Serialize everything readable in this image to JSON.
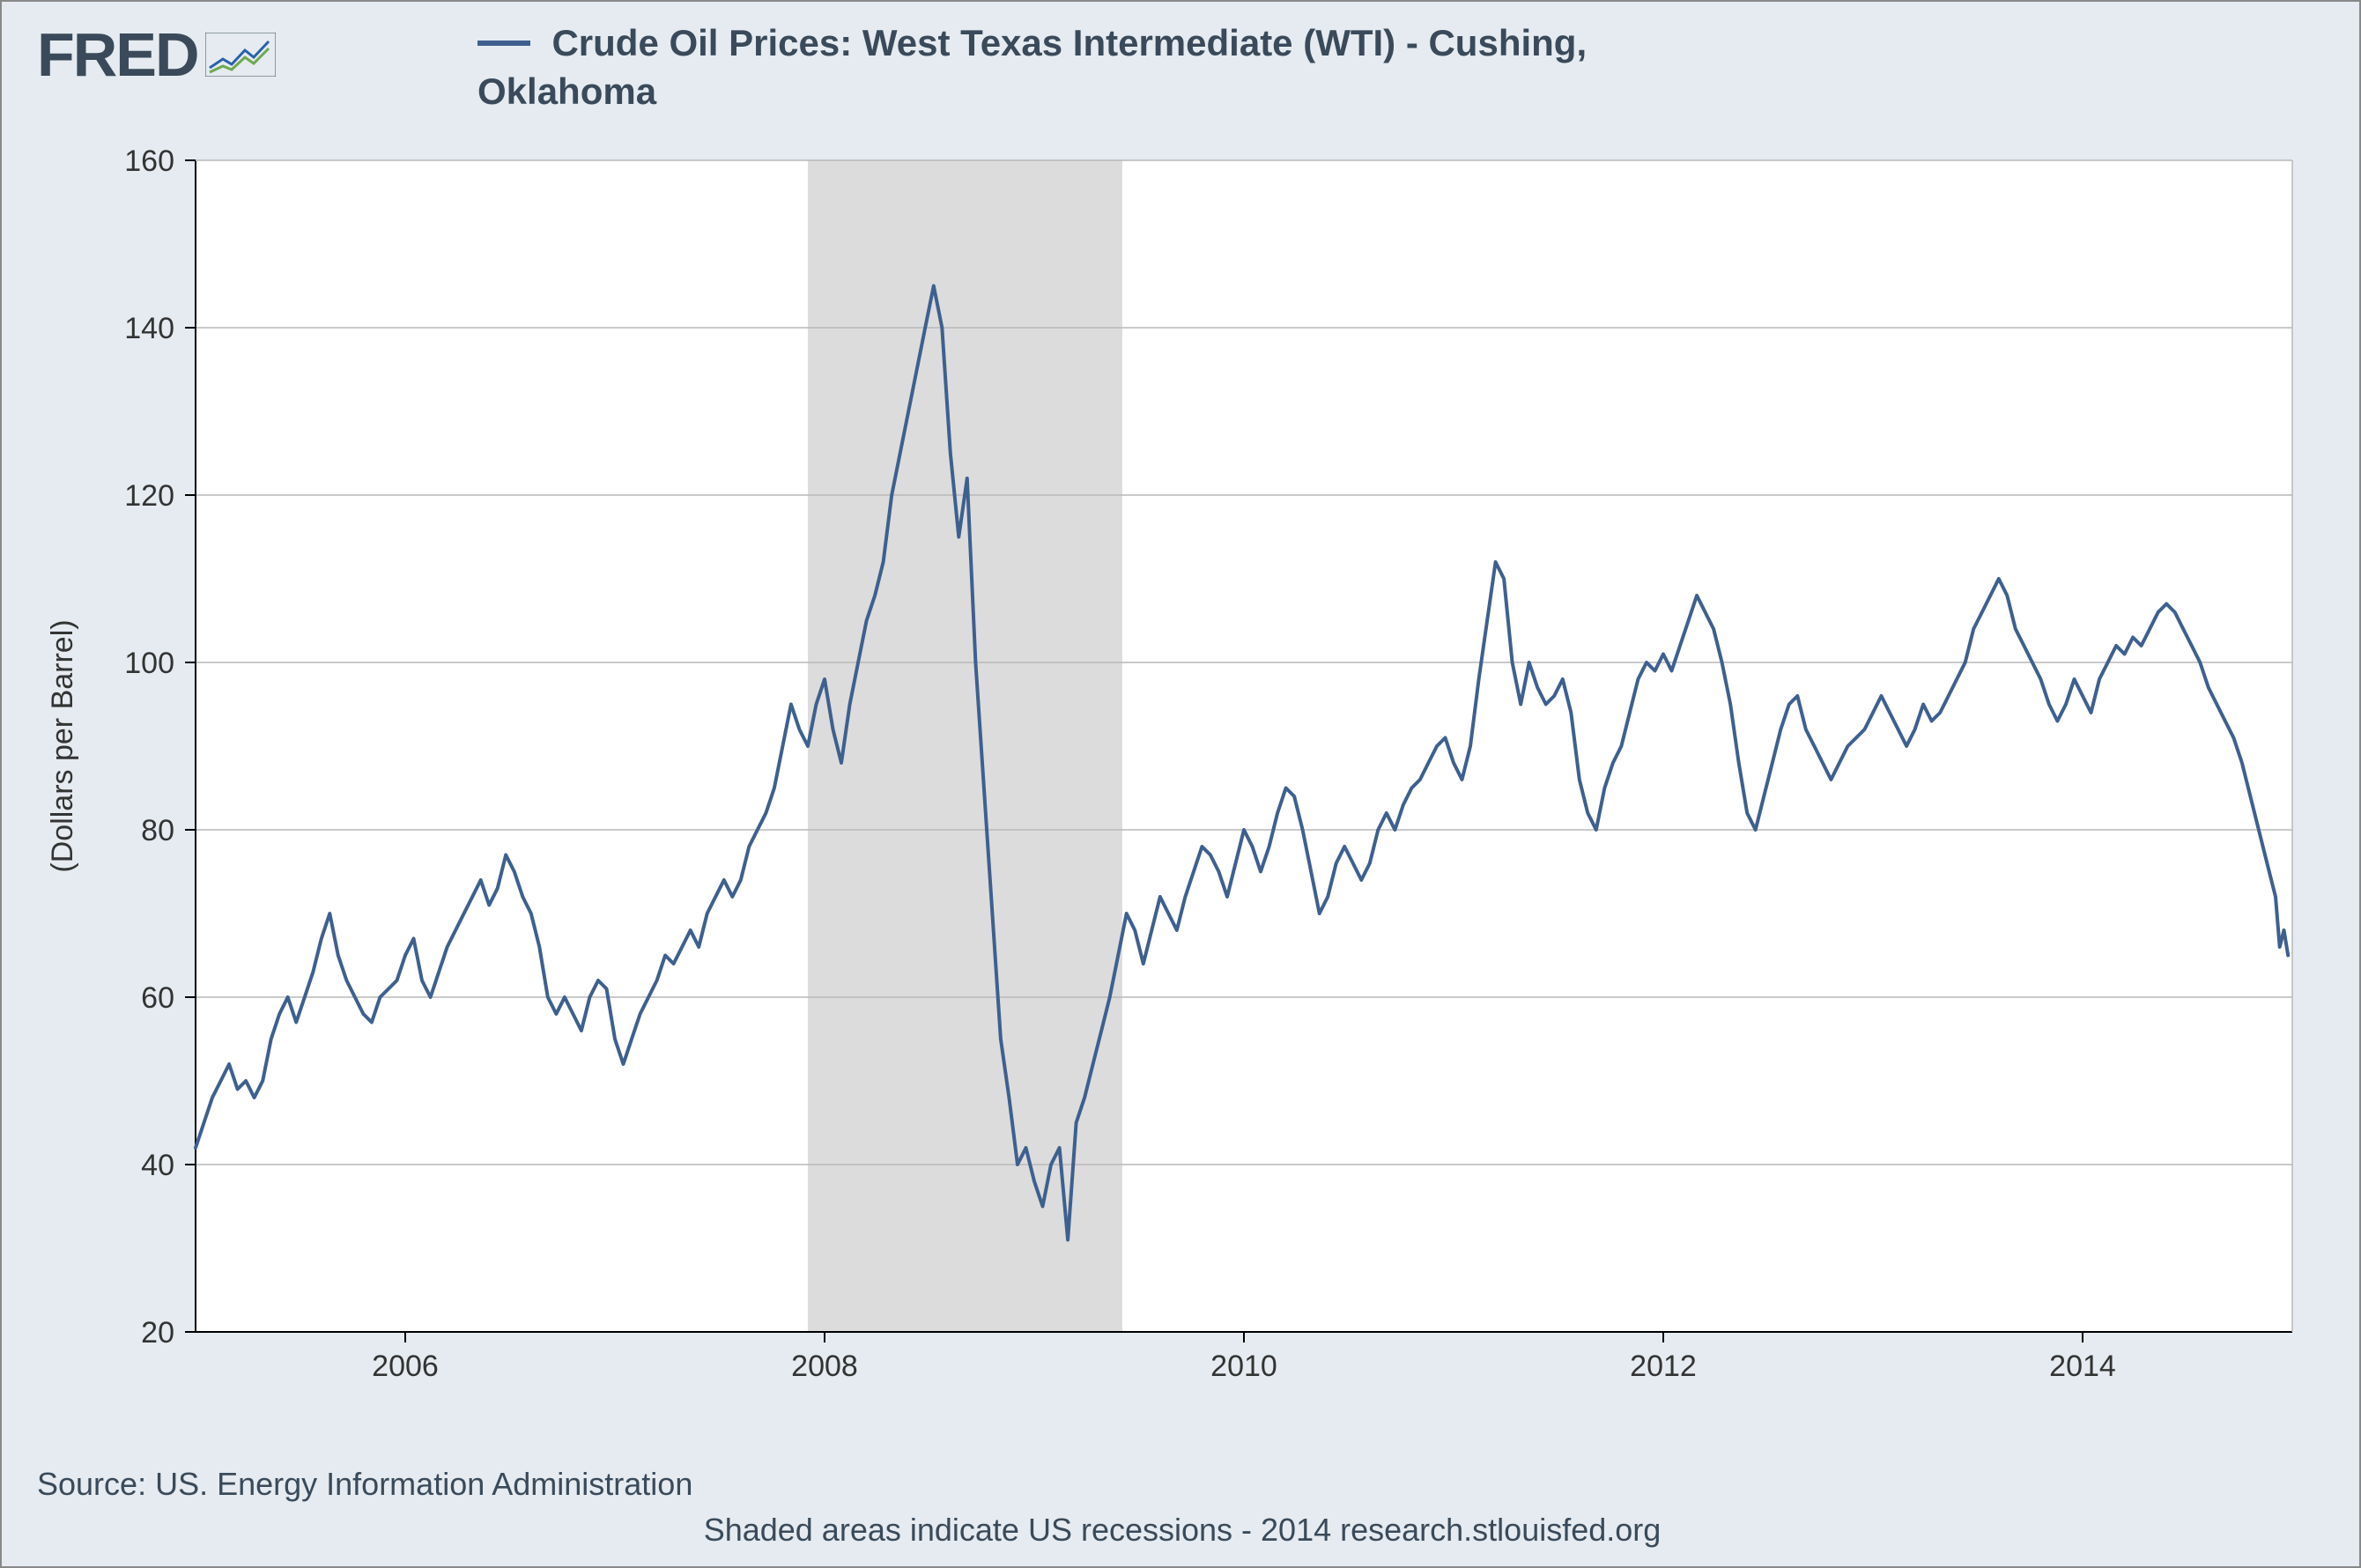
{
  "logo_text": "FRED",
  "chart": {
    "type": "line",
    "title": "Crude Oil Prices: West Texas Intermediate (WTI) - Cushing, Oklahoma",
    "title_fontsize": 42,
    "title_color": "#3a4a5a",
    "ylabel": "(Dollars per Barrel)",
    "ylabel_fontsize": 34,
    "ylabel_color": "#333",
    "ylim": [
      20,
      160
    ],
    "ytick_step": 20,
    "yticks": [
      20,
      40,
      60,
      80,
      100,
      120,
      140,
      160
    ],
    "xlim": [
      2005.0,
      2015.0
    ],
    "xticks": [
      2006,
      2008,
      2010,
      2012,
      2014
    ],
    "xtick_labels": [
      "2006",
      "2008",
      "2010",
      "2012",
      "2014"
    ],
    "tick_fontsize": 34,
    "tick_color": "#333",
    "background_color": "#ffffff",
    "page_background": "#e5ebf0",
    "grid_color": "#b8b8b8",
    "axis_color": "#000000",
    "series_color": "#3e608f",
    "line_width": 4,
    "recession_band": {
      "start": 2007.92,
      "end": 2009.42,
      "color": "#dcdcdc"
    },
    "series": [
      [
        2005.0,
        42
      ],
      [
        2005.04,
        45
      ],
      [
        2005.08,
        48
      ],
      [
        2005.12,
        50
      ],
      [
        2005.16,
        52
      ],
      [
        2005.2,
        49
      ],
      [
        2005.24,
        50
      ],
      [
        2005.28,
        48
      ],
      [
        2005.32,
        50
      ],
      [
        2005.36,
        55
      ],
      [
        2005.4,
        58
      ],
      [
        2005.44,
        60
      ],
      [
        2005.48,
        57
      ],
      [
        2005.52,
        60
      ],
      [
        2005.56,
        63
      ],
      [
        2005.6,
        67
      ],
      [
        2005.64,
        70
      ],
      [
        2005.68,
        65
      ],
      [
        2005.72,
        62
      ],
      [
        2005.76,
        60
      ],
      [
        2005.8,
        58
      ],
      [
        2005.84,
        57
      ],
      [
        2005.88,
        60
      ],
      [
        2005.92,
        61
      ],
      [
        2005.96,
        62
      ],
      [
        2006.0,
        65
      ],
      [
        2006.04,
        67
      ],
      [
        2006.08,
        62
      ],
      [
        2006.12,
        60
      ],
      [
        2006.16,
        63
      ],
      [
        2006.2,
        66
      ],
      [
        2006.24,
        68
      ],
      [
        2006.28,
        70
      ],
      [
        2006.32,
        72
      ],
      [
        2006.36,
        74
      ],
      [
        2006.4,
        71
      ],
      [
        2006.44,
        73
      ],
      [
        2006.48,
        77
      ],
      [
        2006.52,
        75
      ],
      [
        2006.56,
        72
      ],
      [
        2006.6,
        70
      ],
      [
        2006.64,
        66
      ],
      [
        2006.68,
        60
      ],
      [
        2006.72,
        58
      ],
      [
        2006.76,
        60
      ],
      [
        2006.8,
        58
      ],
      [
        2006.84,
        56
      ],
      [
        2006.88,
        60
      ],
      [
        2006.92,
        62
      ],
      [
        2006.96,
        61
      ],
      [
        2007.0,
        55
      ],
      [
        2007.04,
        52
      ],
      [
        2007.08,
        55
      ],
      [
        2007.12,
        58
      ],
      [
        2007.16,
        60
      ],
      [
        2007.2,
        62
      ],
      [
        2007.24,
        65
      ],
      [
        2007.28,
        64
      ],
      [
        2007.32,
        66
      ],
      [
        2007.36,
        68
      ],
      [
        2007.4,
        66
      ],
      [
        2007.44,
        70
      ],
      [
        2007.48,
        72
      ],
      [
        2007.52,
        74
      ],
      [
        2007.56,
        72
      ],
      [
        2007.6,
        74
      ],
      [
        2007.64,
        78
      ],
      [
        2007.68,
        80
      ],
      [
        2007.72,
        82
      ],
      [
        2007.76,
        85
      ],
      [
        2007.8,
        90
      ],
      [
        2007.84,
        95
      ],
      [
        2007.88,
        92
      ],
      [
        2007.92,
        90
      ],
      [
        2007.96,
        95
      ],
      [
        2008.0,
        98
      ],
      [
        2008.04,
        92
      ],
      [
        2008.08,
        88
      ],
      [
        2008.12,
        95
      ],
      [
        2008.16,
        100
      ],
      [
        2008.2,
        105
      ],
      [
        2008.24,
        108
      ],
      [
        2008.28,
        112
      ],
      [
        2008.32,
        120
      ],
      [
        2008.36,
        125
      ],
      [
        2008.4,
        130
      ],
      [
        2008.44,
        135
      ],
      [
        2008.48,
        140
      ],
      [
        2008.52,
        145
      ],
      [
        2008.56,
        140
      ],
      [
        2008.6,
        125
      ],
      [
        2008.64,
        115
      ],
      [
        2008.68,
        122
      ],
      [
        2008.72,
        100
      ],
      [
        2008.76,
        85
      ],
      [
        2008.8,
        70
      ],
      [
        2008.84,
        55
      ],
      [
        2008.88,
        48
      ],
      [
        2008.92,
        40
      ],
      [
        2008.96,
        42
      ],
      [
        2009.0,
        38
      ],
      [
        2009.04,
        35
      ],
      [
        2009.08,
        40
      ],
      [
        2009.12,
        42
      ],
      [
        2009.16,
        31
      ],
      [
        2009.2,
        45
      ],
      [
        2009.24,
        48
      ],
      [
        2009.28,
        52
      ],
      [
        2009.32,
        56
      ],
      [
        2009.36,
        60
      ],
      [
        2009.4,
        65
      ],
      [
        2009.44,
        70
      ],
      [
        2009.48,
        68
      ],
      [
        2009.52,
        64
      ],
      [
        2009.56,
        68
      ],
      [
        2009.6,
        72
      ],
      [
        2009.64,
        70
      ],
      [
        2009.68,
        68
      ],
      [
        2009.72,
        72
      ],
      [
        2009.76,
        75
      ],
      [
        2009.8,
        78
      ],
      [
        2009.84,
        77
      ],
      [
        2009.88,
        75
      ],
      [
        2009.92,
        72
      ],
      [
        2009.96,
        76
      ],
      [
        2010.0,
        80
      ],
      [
        2010.04,
        78
      ],
      [
        2010.08,
        75
      ],
      [
        2010.12,
        78
      ],
      [
        2010.16,
        82
      ],
      [
        2010.2,
        85
      ],
      [
        2010.24,
        84
      ],
      [
        2010.28,
        80
      ],
      [
        2010.32,
        75
      ],
      [
        2010.36,
        70
      ],
      [
        2010.4,
        72
      ],
      [
        2010.44,
        76
      ],
      [
        2010.48,
        78
      ],
      [
        2010.52,
        76
      ],
      [
        2010.56,
        74
      ],
      [
        2010.6,
        76
      ],
      [
        2010.64,
        80
      ],
      [
        2010.68,
        82
      ],
      [
        2010.72,
        80
      ],
      [
        2010.76,
        83
      ],
      [
        2010.8,
        85
      ],
      [
        2010.84,
        86
      ],
      [
        2010.88,
        88
      ],
      [
        2010.92,
        90
      ],
      [
        2010.96,
        91
      ],
      [
        2011.0,
        88
      ],
      [
        2011.04,
        86
      ],
      [
        2011.08,
        90
      ],
      [
        2011.12,
        98
      ],
      [
        2011.16,
        105
      ],
      [
        2011.2,
        112
      ],
      [
        2011.24,
        110
      ],
      [
        2011.28,
        100
      ],
      [
        2011.32,
        95
      ],
      [
        2011.36,
        100
      ],
      [
        2011.4,
        97
      ],
      [
        2011.44,
        95
      ],
      [
        2011.48,
        96
      ],
      [
        2011.52,
        98
      ],
      [
        2011.56,
        94
      ],
      [
        2011.6,
        86
      ],
      [
        2011.64,
        82
      ],
      [
        2011.68,
        80
      ],
      [
        2011.72,
        85
      ],
      [
        2011.76,
        88
      ],
      [
        2011.8,
        90
      ],
      [
        2011.84,
        94
      ],
      [
        2011.88,
        98
      ],
      [
        2011.92,
        100
      ],
      [
        2011.96,
        99
      ],
      [
        2012.0,
        101
      ],
      [
        2012.04,
        99
      ],
      [
        2012.08,
        102
      ],
      [
        2012.12,
        105
      ],
      [
        2012.16,
        108
      ],
      [
        2012.2,
        106
      ],
      [
        2012.24,
        104
      ],
      [
        2012.28,
        100
      ],
      [
        2012.32,
        95
      ],
      [
        2012.36,
        88
      ],
      [
        2012.4,
        82
      ],
      [
        2012.44,
        80
      ],
      [
        2012.48,
        84
      ],
      [
        2012.52,
        88
      ],
      [
        2012.56,
        92
      ],
      [
        2012.6,
        95
      ],
      [
        2012.64,
        96
      ],
      [
        2012.68,
        92
      ],
      [
        2012.72,
        90
      ],
      [
        2012.76,
        88
      ],
      [
        2012.8,
        86
      ],
      [
        2012.84,
        88
      ],
      [
        2012.88,
        90
      ],
      [
        2012.92,
        91
      ],
      [
        2012.96,
        92
      ],
      [
        2013.0,
        94
      ],
      [
        2013.04,
        96
      ],
      [
        2013.08,
        94
      ],
      [
        2013.12,
        92
      ],
      [
        2013.16,
        90
      ],
      [
        2013.2,
        92
      ],
      [
        2013.24,
        95
      ],
      [
        2013.28,
        93
      ],
      [
        2013.32,
        94
      ],
      [
        2013.36,
        96
      ],
      [
        2013.4,
        98
      ],
      [
        2013.44,
        100
      ],
      [
        2013.48,
        104
      ],
      [
        2013.52,
        106
      ],
      [
        2013.56,
        108
      ],
      [
        2013.6,
        110
      ],
      [
        2013.64,
        108
      ],
      [
        2013.68,
        104
      ],
      [
        2013.72,
        102
      ],
      [
        2013.76,
        100
      ],
      [
        2013.8,
        98
      ],
      [
        2013.84,
        95
      ],
      [
        2013.88,
        93
      ],
      [
        2013.92,
        95
      ],
      [
        2013.96,
        98
      ],
      [
        2014.0,
        96
      ],
      [
        2014.04,
        94
      ],
      [
        2014.08,
        98
      ],
      [
        2014.12,
        100
      ],
      [
        2014.16,
        102
      ],
      [
        2014.2,
        101
      ],
      [
        2014.24,
        103
      ],
      [
        2014.28,
        102
      ],
      [
        2014.32,
        104
      ],
      [
        2014.36,
        106
      ],
      [
        2014.4,
        107
      ],
      [
        2014.44,
        106
      ],
      [
        2014.48,
        104
      ],
      [
        2014.52,
        102
      ],
      [
        2014.56,
        100
      ],
      [
        2014.6,
        97
      ],
      [
        2014.64,
        95
      ],
      [
        2014.68,
        93
      ],
      [
        2014.72,
        91
      ],
      [
        2014.76,
        88
      ],
      [
        2014.8,
        84
      ],
      [
        2014.84,
        80
      ],
      [
        2014.88,
        76
      ],
      [
        2014.92,
        72
      ],
      [
        2014.94,
        66
      ],
      [
        2014.96,
        68
      ],
      [
        2014.98,
        65
      ]
    ]
  },
  "footer": {
    "source": "Source: US. Energy Information Administration",
    "note": "Shaded areas indicate US recessions - 2014 research.stlouisfed.org"
  }
}
